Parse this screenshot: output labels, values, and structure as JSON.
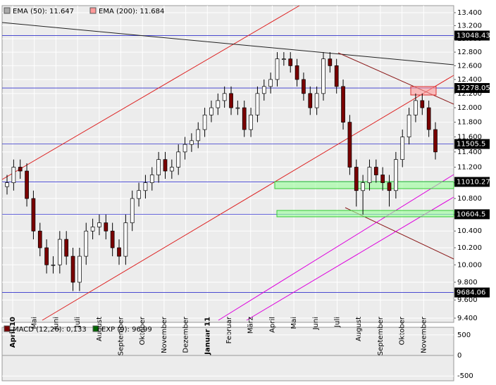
{
  "chart_data": {
    "type": "candlestick",
    "legend": [
      "EMA (50): 11.647",
      "EMA (200): 11.684"
    ],
    "ylim": [
      9400,
      13400
    ],
    "log_scale": true,
    "grid": true,
    "yticks": [
      {
        "value": 9400,
        "label": "9.400"
      },
      {
        "value": 9600,
        "label": "9.600"
      },
      {
        "value": 9800,
        "label": "9.800"
      },
      {
        "value": 10000,
        "label": "10.000"
      },
      {
        "value": 10200,
        "label": "10.200"
      },
      {
        "value": 10400,
        "label": "10.400"
      },
      {
        "value": 10600,
        "label": "10.600"
      },
      {
        "value": 10800,
        "label": "10.800"
      },
      {
        "value": 11000,
        "label": "11.000"
      },
      {
        "value": 11200,
        "label": "11.200"
      },
      {
        "value": 11400,
        "label": "11.400"
      },
      {
        "value": 11600,
        "label": "11.600"
      },
      {
        "value": 11800,
        "label": "11.800"
      },
      {
        "value": 12000,
        "label": "12.000"
      },
      {
        "value": 12200,
        "label": "12.200"
      },
      {
        "value": 12400,
        "label": "12.400"
      },
      {
        "value": 12600,
        "label": "12.600"
      },
      {
        "value": 12800,
        "label": "12.800"
      },
      {
        "value": 13000,
        "label": "13.000"
      },
      {
        "value": 13200,
        "label": "13.200"
      },
      {
        "value": 13400,
        "label": "13.400"
      }
    ],
    "levels": [
      13048.43,
      12278.05,
      11505.5,
      11010.27,
      10604.5,
      9684.06
    ],
    "months": [
      "April 10",
      "Mai",
      "Juni",
      "Juli",
      "August",
      "September",
      "Oktober",
      "November",
      "Dezember",
      "Januar 11",
      "Februar",
      "März",
      "April",
      "Mai",
      "Juni",
      "Juli",
      "August",
      "September",
      "Oktober",
      "November"
    ],
    "open": [
      10950,
      11000,
      11200,
      11150,
      10800,
      10400,
      10200,
      10000,
      10000,
      10300,
      10100,
      9800,
      10100,
      10400,
      10450,
      10500,
      10400,
      10200,
      10100,
      10500,
      10800,
      10900,
      11000,
      11100,
      11300,
      11150,
      11200,
      11400,
      11500,
      11550,
      11700,
      11900,
      12000,
      12100,
      12200,
      12000,
      12000,
      11700,
      11900,
      12200,
      12300,
      12400,
      12700,
      12700,
      12600,
      12400,
      12200,
      12000,
      12200,
      12700,
      12600,
      12300,
      11800,
      11200,
      10900,
      11000,
      11200,
      11100,
      11000,
      10900,
      11300,
      11600,
      11900,
      12100,
      12000,
      11700
    ],
    "close": [
      11000,
      11200,
      11150,
      10800,
      10400,
      10200,
      10000,
      10000,
      10300,
      10100,
      9800,
      10100,
      10400,
      10450,
      10500,
      10400,
      10200,
      10100,
      10500,
      10800,
      10900,
      11000,
      11100,
      11300,
      11150,
      11200,
      11400,
      11500,
      11550,
      11700,
      11900,
      12000,
      12100,
      12200,
      12000,
      12000,
      11700,
      11900,
      12200,
      12300,
      12400,
      12700,
      12700,
      12600,
      12400,
      12200,
      12000,
      12200,
      12700,
      12600,
      12300,
      11800,
      11200,
      10900,
      11000,
      11200,
      11100,
      11000,
      10900,
      11300,
      11600,
      11900,
      12100,
      12000,
      11700,
      11400
    ],
    "high": [
      11100,
      11300,
      11300,
      11250,
      10900,
      10500,
      10300,
      10100,
      10400,
      10400,
      10200,
      10200,
      10500,
      10550,
      10600,
      10600,
      10500,
      10300,
      10600,
      10900,
      11000,
      11100,
      11200,
      11400,
      11400,
      11300,
      11500,
      11600,
      11650,
      11800,
      12000,
      12100,
      12200,
      12300,
      12300,
      12100,
      12100,
      12000,
      12300,
      12400,
      12500,
      12800,
      12800,
      12800,
      12700,
      12500,
      12300,
      12300,
      12800,
      12800,
      12700,
      12400,
      11900,
      11300,
      11100,
      11300,
      11300,
      11200,
      11100,
      11400,
      11700,
      12000,
      12200,
      12200,
      12100,
      11800
    ],
    "low": [
      10850,
      10900,
      11050,
      10700,
      10300,
      10100,
      9900,
      9900,
      9900,
      10000,
      9700,
      9700,
      10000,
      10300,
      10350,
      10300,
      10100,
      10000,
      10000,
      10400,
      10700,
      10800,
      10900,
      11000,
      11050,
      11050,
      11100,
      11300,
      11400,
      11450,
      11600,
      11800,
      11900,
      12000,
      11900,
      11900,
      11600,
      11600,
      11800,
      12100,
      12200,
      12300,
      12600,
      12500,
      12300,
      12100,
      11900,
      11900,
      12100,
      12500,
      12200,
      11700,
      11100,
      10700,
      10600,
      10900,
      11000,
      10900,
      10700,
      10800,
      11200,
      11500,
      11800,
      11900,
      11600,
      11300
    ],
    "up_color": "#ffffff",
    "down_color": "#7a0000",
    "macd": {
      "legend": [
        "MACD (12,26): 0,133",
        "EXP (9): 96,99"
      ],
      "ylim": [
        -650,
        650
      ],
      "yticks": [
        500,
        0,
        -500
      ]
    }
  }
}
